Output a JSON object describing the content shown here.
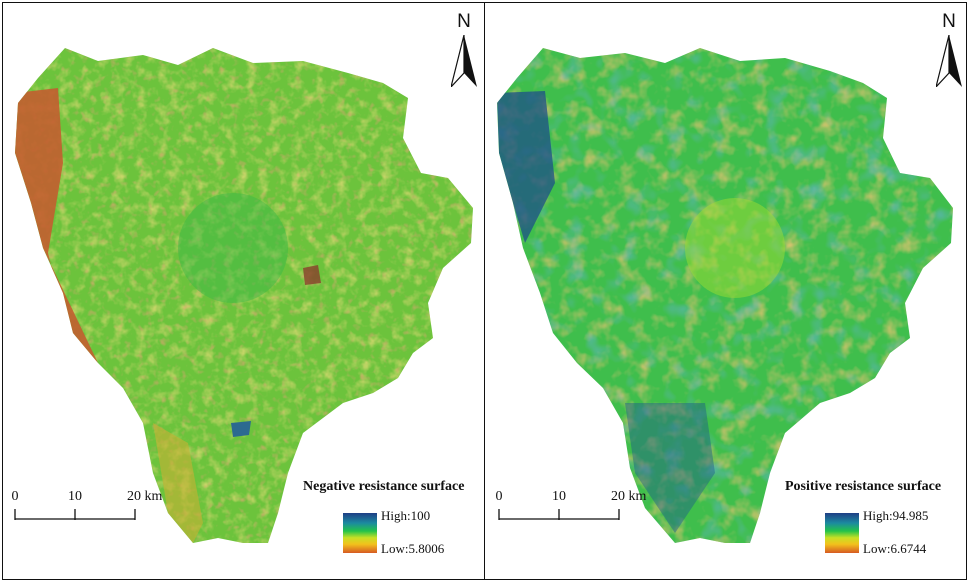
{
  "panels": [
    {
      "north_label": "N",
      "title": "Negative resistance surface",
      "scale": {
        "ticks": [
          "0",
          "10",
          "20 km"
        ]
      },
      "legend": {
        "high": "High:100",
        "low": "Low:5.8006"
      },
      "palette": {
        "dominant": "#5fc43a",
        "secondary": "#c9c43a",
        "edge": "#c46a35",
        "dark": "#2a6a8a"
      }
    },
    {
      "north_label": "N",
      "title": "Positive resistance surface",
      "scale": {
        "ticks": [
          "0",
          "10",
          "20 km"
        ]
      },
      "legend": {
        "high": "High:94.985",
        "low": "Low:6.6744"
      },
      "palette": {
        "dominant": "#3dbd4a",
        "secondary": "#e0a43a",
        "edge": "#1f5f8a",
        "dark": "#1c3f80"
      }
    }
  ]
}
